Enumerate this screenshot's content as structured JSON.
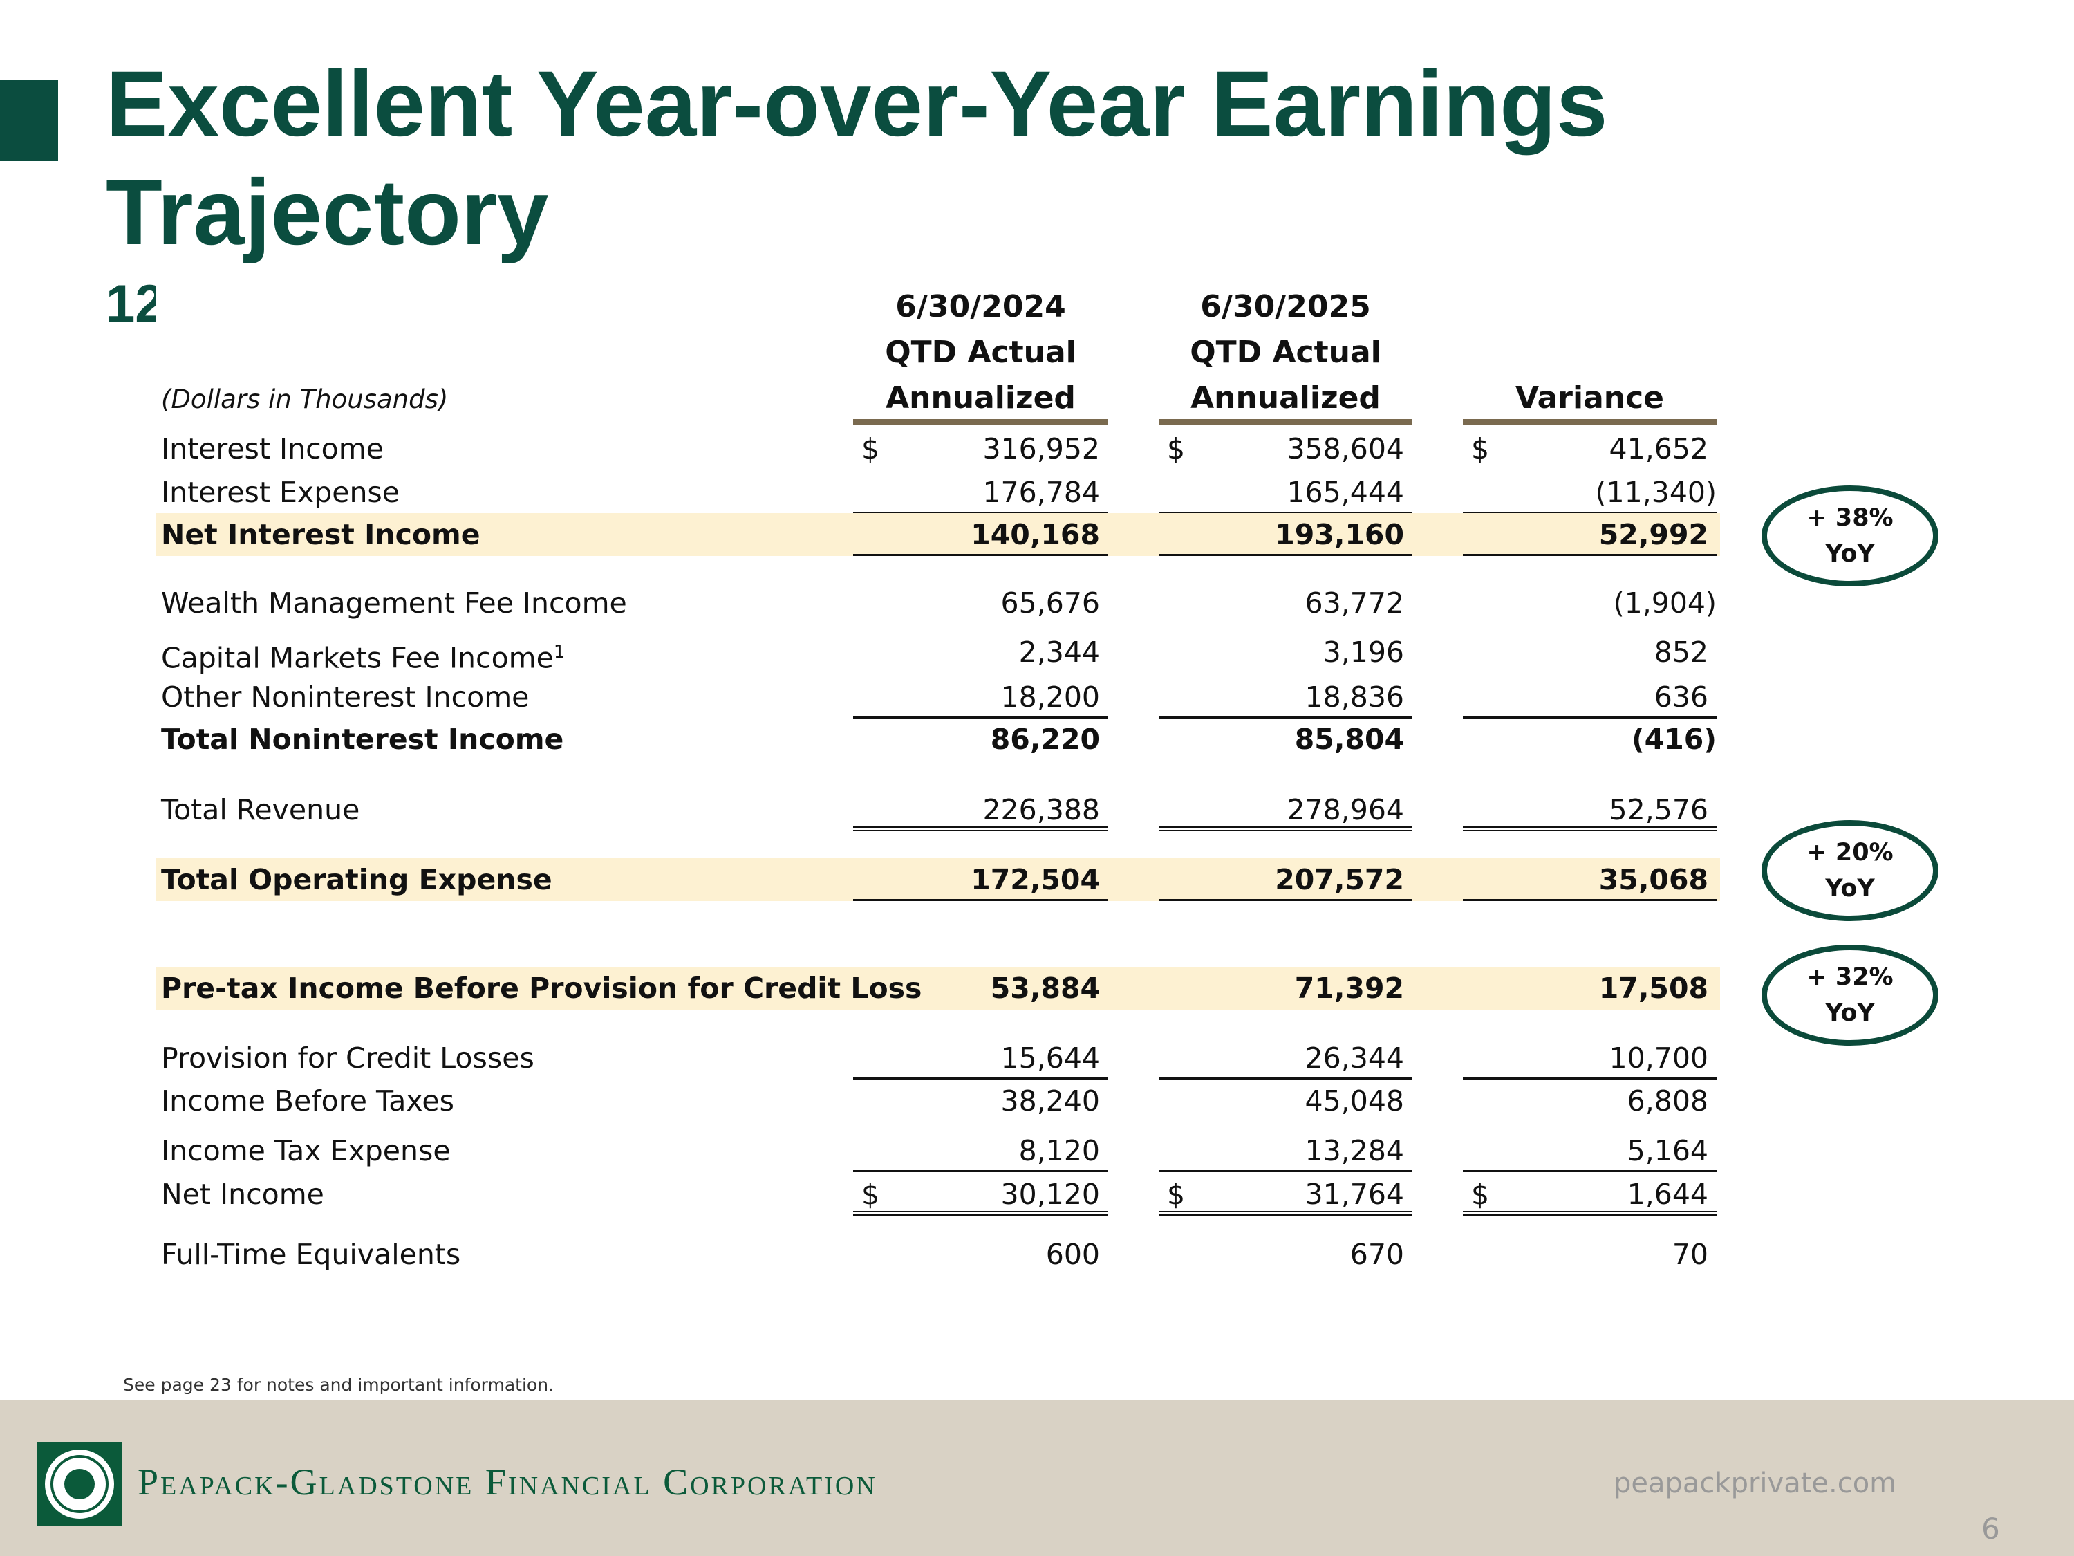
{
  "header": {
    "title_lines": [
      "Excellent Year-over-Year Earnings",
      "Trajectory"
    ],
    "subtitle": "12"
  },
  "table": {
    "note": "(Dollars in Thousands)",
    "currency": "$",
    "columns": [
      [
        "6/30/2024",
        "QTD Actual",
        "Annualized"
      ],
      [
        "6/30/2025",
        "QTD Actual",
        "Annualized"
      ],
      [
        "Variance"
      ]
    ],
    "rows": [
      {
        "label": "Interest Income",
        "values": [
          "316,952",
          "358,604",
          "41,652"
        ],
        "dollar": true
      },
      {
        "label": "Interest Expense",
        "values": [
          "176,784",
          "165,444",
          "(11,340)"
        ],
        "rule": "single"
      },
      {
        "label": "Net Interest Income",
        "values": [
          "140,168",
          "193,160",
          "52,992"
        ],
        "bold": true,
        "highlight": true,
        "rule": "single"
      },
      {
        "label": "Wealth Management Fee Income",
        "values": [
          "65,676",
          "63,772",
          "(1,904)"
        ]
      },
      {
        "label": "Capital Markets Fee Income",
        "footnote": "1",
        "values": [
          "2,344",
          "3,196",
          "852"
        ]
      },
      {
        "label": "Other Noninterest Income",
        "values": [
          "18,200",
          "18,836",
          "636"
        ],
        "rule": "single"
      },
      {
        "label": "Total Noninterest Income",
        "values": [
          "86,220",
          "85,804",
          "(416)"
        ],
        "bold": true
      },
      {
        "label": "Total Revenue",
        "values": [
          "226,388",
          "278,964",
          "52,576"
        ],
        "rule": "double"
      },
      {
        "label": "Total Operating Expense",
        "values": [
          "172,504",
          "207,572",
          "35,068"
        ],
        "bold": true,
        "highlight": true,
        "rule": "single"
      },
      {
        "label": "Pre-tax Income Before Provision for Credit Loss",
        "values": [
          "53,884",
          "71,392",
          "17,508"
        ],
        "bold": true,
        "highlight": true
      },
      {
        "label": "Provision for Credit Losses",
        "values": [
          "15,644",
          "26,344",
          "10,700"
        ],
        "rule": "single"
      },
      {
        "label": "Income Before Taxes",
        "values": [
          "38,240",
          "45,048",
          "6,808"
        ]
      },
      {
        "label": "Income Tax Expense",
        "values": [
          "8,120",
          "13,284",
          "5,164"
        ],
        "rule": "single"
      },
      {
        "label": "Net Income",
        "values": [
          "30,120",
          "31,764",
          "1,644"
        ],
        "dollar": true,
        "rule": "double"
      },
      {
        "label": "Full-Time Equivalents",
        "values": [
          "600",
          "670",
          "70"
        ]
      }
    ]
  },
  "badges": [
    {
      "lines": [
        "+ 38%",
        "YoY"
      ]
    },
    {
      "lines": [
        "+ 20%",
        "YoY"
      ]
    },
    {
      "lines": [
        "+ 32%",
        "YoY"
      ]
    }
  ],
  "footer": {
    "note": "See page 23 for notes and important information.",
    "brand": "Peapack-Gladstone Financial Corporation",
    "website": "peapackprivate.com",
    "page": "6"
  }
}
